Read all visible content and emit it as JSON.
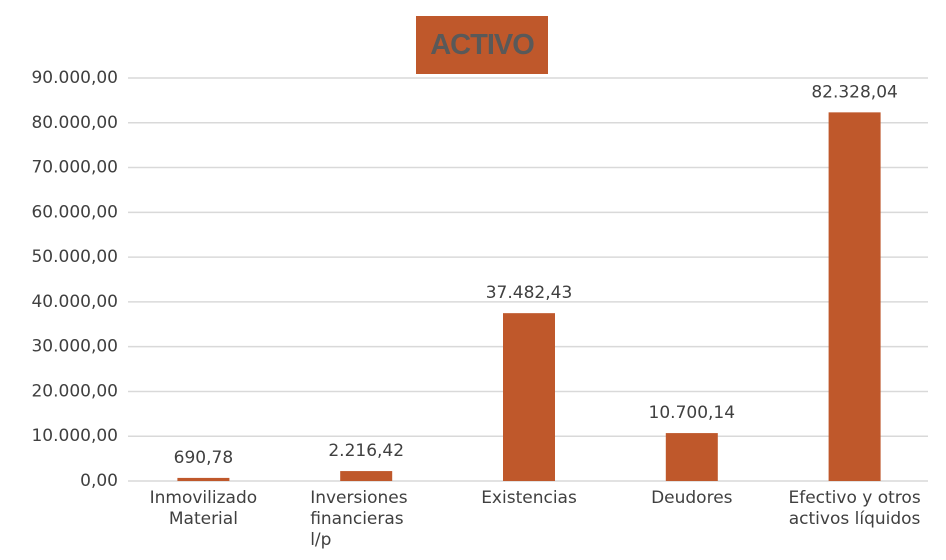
{
  "chart_data": {
    "type": "bar",
    "title": "ACTIVO",
    "categories": [
      "Inmovilizado Material",
      "Inversiones financieras l/p",
      "Existencias",
      "Deudores",
      "Efectivo y otros activos líquidos"
    ],
    "values": [
      690.78,
      2216.42,
      37482.43,
      10700.14,
      82328.04
    ],
    "value_labels": [
      "690,78",
      "2.216,42",
      "37.482,43",
      "10.700,14",
      "82.328,04"
    ],
    "color": "#bf582b",
    "ylim": [
      0,
      90000
    ],
    "yticks": [
      {
        "value": 0,
        "label": "0,00"
      },
      {
        "value": 10000,
        "label": "10.000,00"
      },
      {
        "value": 20000,
        "label": "20.000,00"
      },
      {
        "value": 30000,
        "label": "30.000,00"
      },
      {
        "value": 40000,
        "label": "40.000,00"
      },
      {
        "value": 50000,
        "label": "50.000,00"
      },
      {
        "value": 60000,
        "label": "60.000,00"
      },
      {
        "value": 70000,
        "label": "70.000,00"
      },
      {
        "value": 80000,
        "label": "80.000,00"
      },
      {
        "value": 90000,
        "label": "90.000,00"
      }
    ],
    "grid": true
  }
}
